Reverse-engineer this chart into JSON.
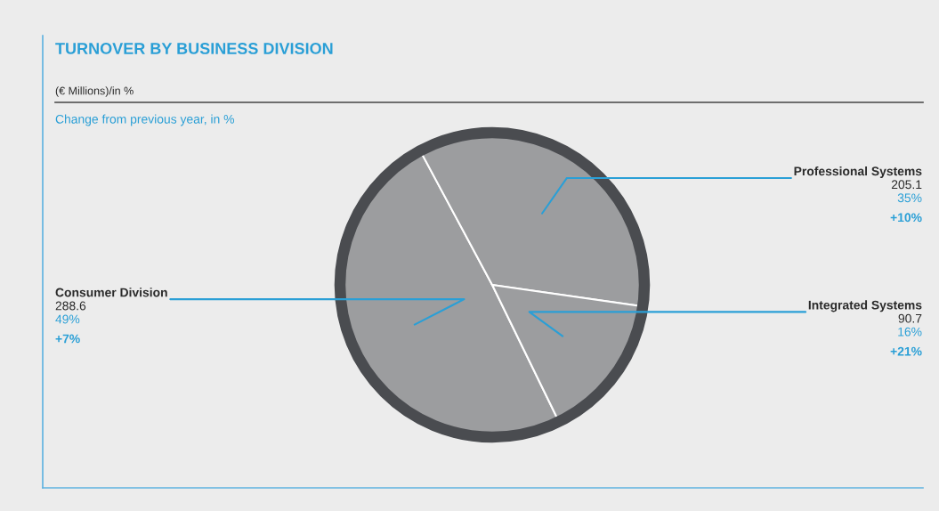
{
  "chart_data": {
    "type": "pie",
    "title": "TURNOVER BY BUSINESS DIVISION",
    "subtitle": "(€ Millions)/in %",
    "categories": [
      "Consumer Division",
      "Professional Systems",
      "Integrated Systems"
    ],
    "values": [
      288.6,
      205.1,
      90.7
    ],
    "colors": [
      "#9c9d9f",
      "#9c9d9f",
      "#9c9d9f"
    ],
    "data_labels": true,
    "legend": false,
    "annotations": [
      "Change from previous year, in %",
      {
        "text": "49%",
        "x": "Consumer Division"
      },
      {
        "text": "+7%",
        "x": "Consumer Division"
      },
      {
        "text": "35%",
        "x": "Professional Systems"
      },
      {
        "text": "+10%",
        "x": "Professional Systems"
      },
      {
        "text": "16%",
        "x": "Integrated Systems"
      },
      {
        "text": "+21%",
        "x": "Integrated Systems"
      }
    ]
  }
}
